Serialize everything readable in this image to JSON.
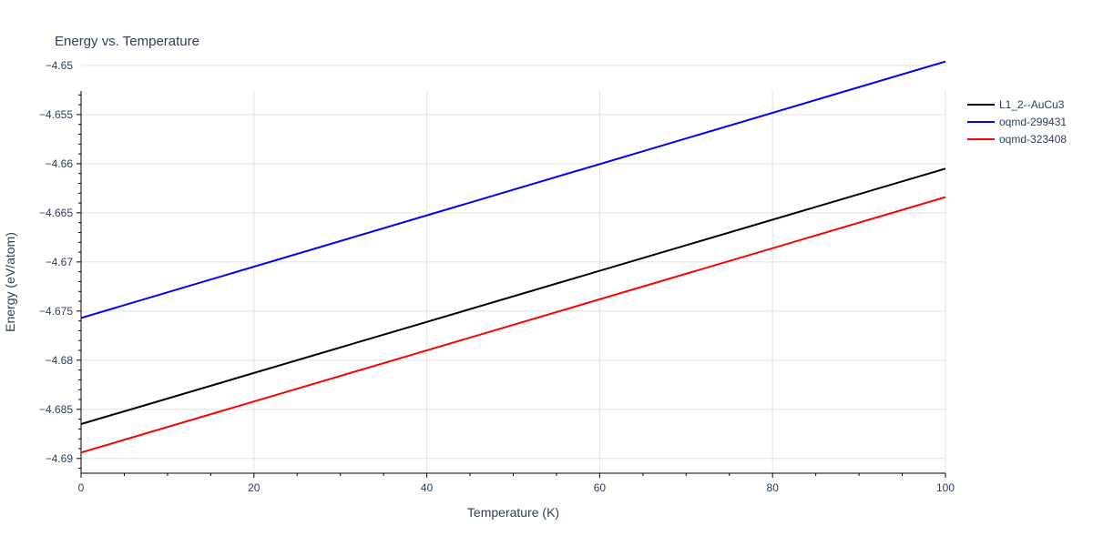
{
  "chart_data": {
    "type": "line",
    "title": "Energy vs. Temperature",
    "xlabel": "Temperature (K)",
    "ylabel": "Energy (eV/atom)",
    "xlim": [
      0,
      100
    ],
    "ylim": [
      -4.6915,
      -4.6526
    ],
    "x_ticks": [
      0,
      20,
      40,
      60,
      80,
      100
    ],
    "x_tick_labels": [
      "0",
      "20",
      "40",
      "60",
      "80",
      "100"
    ],
    "y_ticks": [
      -4.69,
      -4.685,
      -4.68,
      -4.675,
      -4.67,
      -4.665,
      -4.66,
      -4.655,
      -4.65
    ],
    "y_tick_labels": [
      "−4.69",
      "−4.685",
      "−4.68",
      "−4.675",
      "−4.67",
      "−4.665",
      "−4.66",
      "−4.655",
      "−4.65"
    ],
    "grid": true,
    "legend_position": "top-right",
    "series": [
      {
        "name": "L1_2--AuCu3",
        "color": "#000000",
        "x": [
          0,
          100
        ],
        "y": [
          -4.6865,
          -4.6605
        ]
      },
      {
        "name": "oqmd-299431",
        "color": "#0000ff",
        "x": [
          0,
          100
        ],
        "y": [
          -4.6757,
          -4.6496
        ]
      },
      {
        "name": "oqmd-323408",
        "color": "#ff0000",
        "x": [
          0,
          100
        ],
        "y": [
          -4.6894,
          -4.6634
        ]
      }
    ]
  }
}
